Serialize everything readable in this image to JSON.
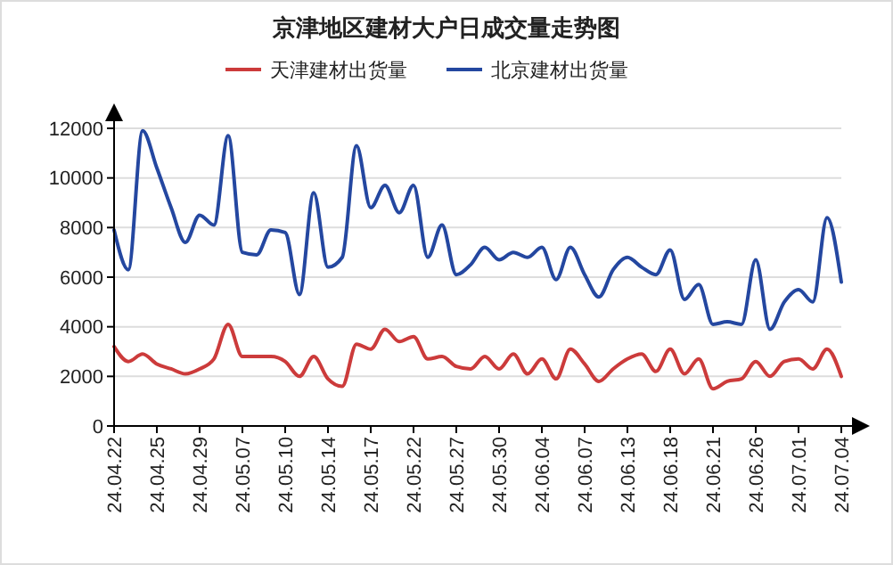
{
  "chart_data": {
    "type": "line",
    "title": "京津地区建材大户日成交量走势图",
    "categories": [
      "24.04.22",
      null,
      null,
      "24.04.25",
      null,
      null,
      "24.04.29",
      null,
      null,
      "24.05.07",
      null,
      null,
      "24.05.10",
      null,
      null,
      "24.05.14",
      null,
      null,
      "24.05.17",
      null,
      null,
      "24.05.22",
      null,
      null,
      "24.05.27",
      null,
      null,
      "24.05.30",
      null,
      null,
      "24.06.04",
      null,
      null,
      "24.06.07",
      null,
      null,
      "24.06.13",
      null,
      null,
      "24.06.18",
      null,
      null,
      "24.06.21",
      null,
      null,
      "24.06.26",
      null,
      null,
      "24.07.01",
      null,
      null,
      "24.07.04"
    ],
    "series": [
      {
        "name": "天津建材出货量",
        "color": "#cc3b3b",
        "values": [
          3200,
          2600,
          2900,
          2500,
          2300,
          2100,
          2300,
          2700,
          4100,
          2800,
          2800,
          2800,
          2600,
          2000,
          2800,
          1900,
          1600,
          3300,
          3100,
          3900,
          3400,
          3600,
          2700,
          2800,
          2400,
          2300,
          2800,
          2300,
          2900,
          2100,
          2700,
          1900,
          3100,
          2500,
          1800,
          2300,
          2700,
          2900,
          2200,
          3100,
          2100,
          2700,
          1500,
          1800,
          1900,
          2600,
          2000,
          2600,
          2700,
          2300,
          3100,
          2000
        ]
      },
      {
        "name": "北京建材出货量",
        "color": "#2447a0",
        "values": [
          7900,
          6300,
          11900,
          10400,
          8800,
          7400,
          8500,
          8100,
          11700,
          7000,
          6900,
          7900,
          7800,
          5300,
          9400,
          6400,
          6800,
          11300,
          8800,
          9700,
          8600,
          9700,
          6800,
          8100,
          6100,
          6500,
          7200,
          6700,
          7000,
          6800,
          7200,
          5900,
          7200,
          6100,
          5200,
          6300,
          6800,
          6400,
          6100,
          7100,
          5100,
          5700,
          4100,
          4200,
          4100,
          6700,
          3900,
          5000,
          5500,
          5000,
          8400,
          5800
        ]
      }
    ],
    "ylim": [
      0,
      12000
    ],
    "yticks": [
      0,
      2000,
      4000,
      6000,
      8000,
      10000,
      12000
    ],
    "grid": "y",
    "legend": "top"
  }
}
